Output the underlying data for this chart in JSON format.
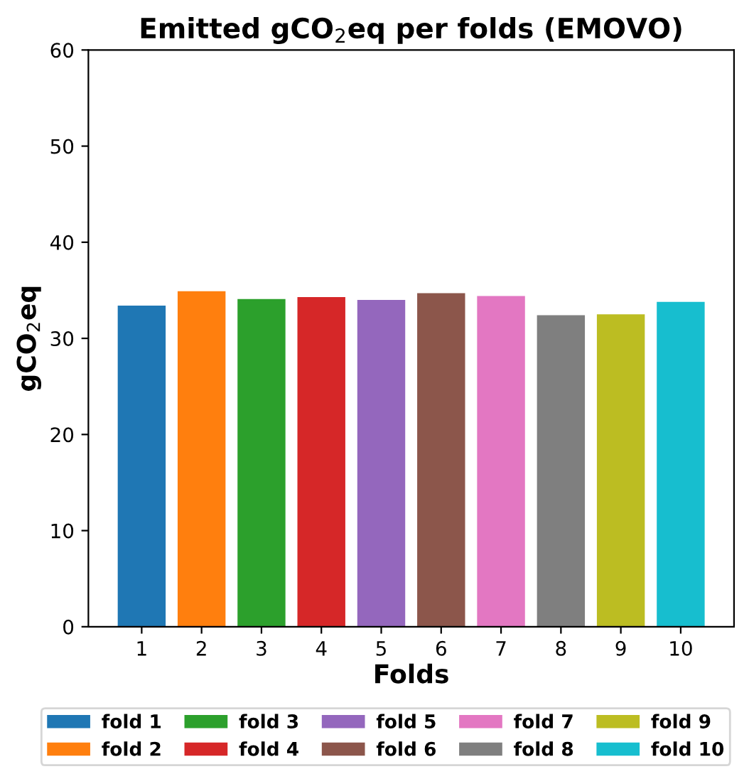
{
  "chart_data": {
    "type": "bar",
    "title": "Emitted gCO$_{2}$eq per folds (EMOVO)",
    "xlabel": "Folds",
    "ylabel": "gCO$_{2}$eq",
    "categories": [
      "1",
      "2",
      "3",
      "4",
      "5",
      "6",
      "7",
      "8",
      "9",
      "10"
    ],
    "series": [
      {
        "name": "fold 1",
        "color": "#1f77b4",
        "values": [
          33.4,
          null,
          null,
          null,
          null,
          null,
          null,
          null,
          null,
          null
        ]
      },
      {
        "name": "fold 2",
        "color": "#ff7f0e",
        "values": [
          null,
          34.9,
          null,
          null,
          null,
          null,
          null,
          null,
          null,
          null
        ]
      },
      {
        "name": "fold 3",
        "color": "#2ca02c",
        "values": [
          null,
          null,
          34.1,
          null,
          null,
          null,
          null,
          null,
          null,
          null
        ]
      },
      {
        "name": "fold 4",
        "color": "#d62728",
        "values": [
          null,
          null,
          null,
          34.3,
          null,
          null,
          null,
          null,
          null,
          null
        ]
      },
      {
        "name": "fold 5",
        "color": "#9467bd",
        "values": [
          null,
          null,
          null,
          null,
          34.0,
          null,
          null,
          null,
          null,
          null
        ]
      },
      {
        "name": "fold 6",
        "color": "#8c564b",
        "values": [
          null,
          null,
          null,
          null,
          null,
          34.7,
          null,
          null,
          null,
          null
        ]
      },
      {
        "name": "fold 7",
        "color": "#e377c2",
        "values": [
          null,
          null,
          null,
          null,
          null,
          null,
          34.4,
          null,
          null,
          null
        ]
      },
      {
        "name": "fold 8",
        "color": "#7f7f7f",
        "values": [
          null,
          null,
          null,
          null,
          null,
          null,
          null,
          32.4,
          null,
          null
        ]
      },
      {
        "name": "fold 9",
        "color": "#bcbd22",
        "values": [
          null,
          null,
          null,
          null,
          null,
          null,
          null,
          null,
          32.5,
          null
        ]
      },
      {
        "name": "fold 10",
        "color": "#17becf",
        "values": [
          null,
          null,
          null,
          null,
          null,
          null,
          null,
          null,
          null,
          33.8
        ]
      }
    ],
    "ylim": [
      0,
      60
    ],
    "yticks": [
      0,
      10,
      20,
      30,
      40,
      50,
      60
    ],
    "grid": false,
    "legend": "bottom"
  }
}
